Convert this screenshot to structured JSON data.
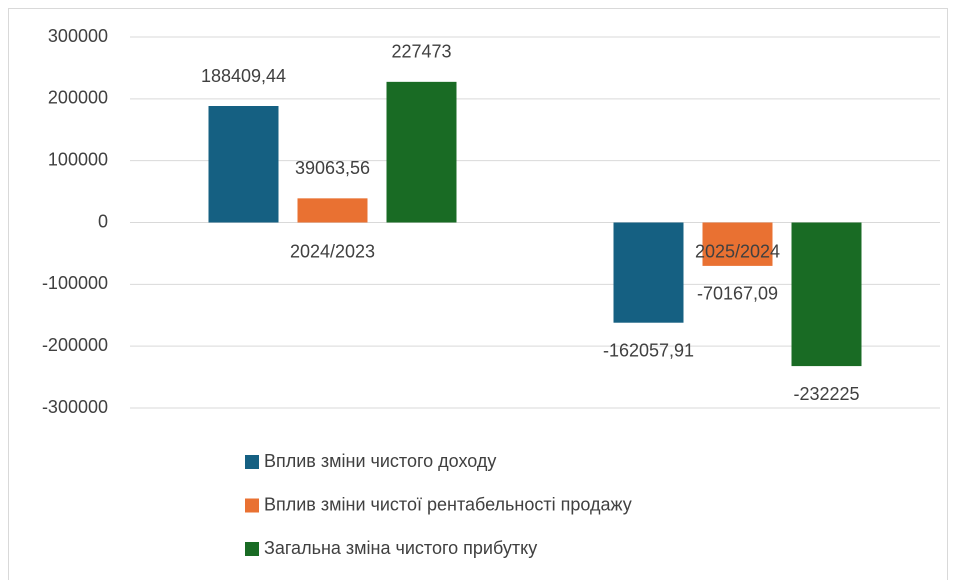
{
  "chart_data": {
    "type": "bar",
    "categories": [
      "2024/2023",
      "2025/2024"
    ],
    "series": [
      {
        "name": "Вплив зміни чистого доходу",
        "color": "#156082",
        "values": [
          188409.44,
          -162057.91
        ],
        "value_labels": [
          "188409,44",
          "-162057,91"
        ]
      },
      {
        "name": "Вплив зміни чистої рентабельності продажу",
        "color": "#e97132",
        "values": [
          39063.56,
          -70167.09
        ],
        "value_labels": [
          "39063,56",
          "-70167,09"
        ]
      },
      {
        "name": "Загальна зміна чистого прибутку",
        "color": "#196b24",
        "values": [
          227473,
          -232225
        ]
      }
    ],
    "ylim": [
      -300000,
      300000
    ],
    "yticks": [
      -300000,
      -200000,
      -100000,
      0,
      100000,
      200000,
      300000
    ],
    "grid": true,
    "legend": "bottom"
  }
}
